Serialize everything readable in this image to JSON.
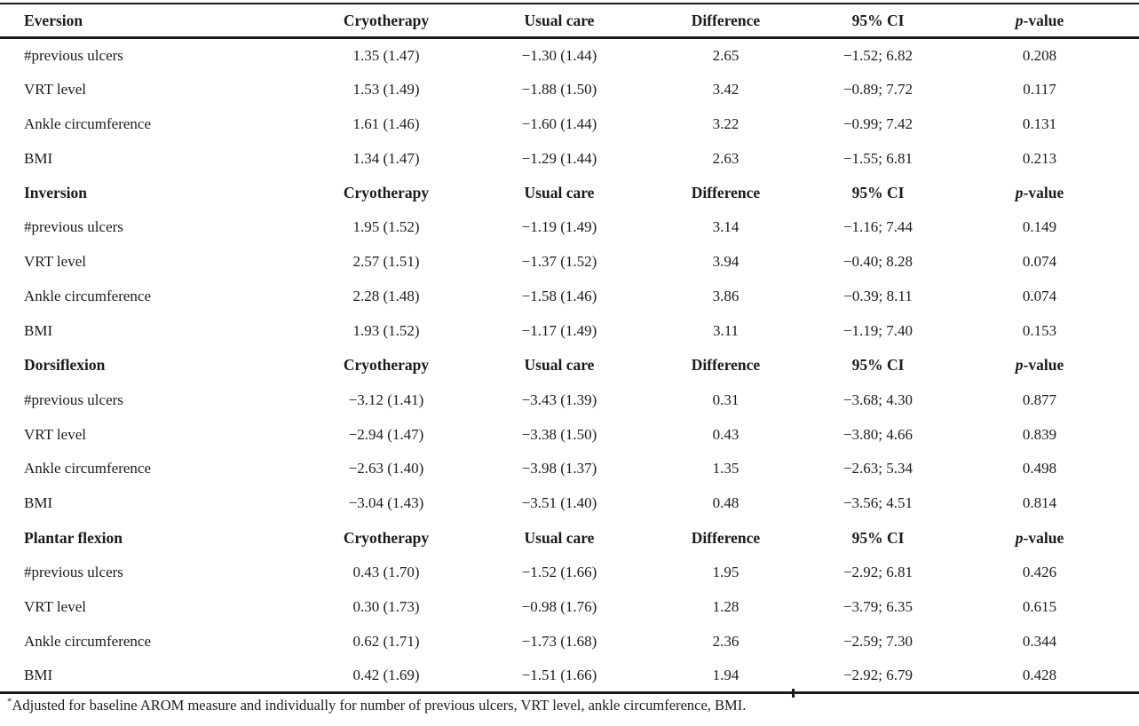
{
  "page": {
    "background": "#ffffff",
    "text_color": "#1b1b1b"
  },
  "table": {
    "column_headers": [
      "Cryotherapy",
      "Usual care",
      "Difference",
      "95% CI"
    ],
    "pvalue_header": {
      "italic": "p",
      "rest": "-value"
    },
    "sections": [
      {
        "title": "Eversion",
        "rows": [
          {
            "label": "#previous ulcers",
            "values": [
              "1.35 (1.47)",
              "−1.30 (1.44)",
              "2.65",
              "−1.52; 6.82",
              "0.208"
            ]
          },
          {
            "label": "VRT level",
            "values": [
              "1.53 (1.49)",
              "−1.88 (1.50)",
              "3.42",
              "−0.89; 7.72",
              "0.117"
            ]
          },
          {
            "label": "Ankle circumference",
            "values": [
              "1.61 (1.46)",
              "−1.60 (1.44)",
              "3.22",
              "−0.99; 7.42",
              "0.131"
            ]
          },
          {
            "label": "BMI",
            "values": [
              "1.34 (1.47)",
              "−1.29 (1.44)",
              "2.63",
              "−1.55; 6.81",
              "0.213"
            ]
          }
        ]
      },
      {
        "title": "Inversion",
        "rows": [
          {
            "label": "#previous ulcers",
            "values": [
              "1.95 (1.52)",
              "−1.19 (1.49)",
              "3.14",
              "−1.16; 7.44",
              "0.149"
            ]
          },
          {
            "label": "VRT level",
            "values": [
              "2.57 (1.51)",
              "−1.37 (1.52)",
              "3.94",
              "−0.40; 8.28",
              "0.074"
            ]
          },
          {
            "label": "Ankle circumference",
            "values": [
              "2.28 (1.48)",
              "−1.58 (1.46)",
              "3.86",
              "−0.39; 8.11",
              "0.074"
            ]
          },
          {
            "label": "BMI",
            "values": [
              "1.93 (1.52)",
              "−1.17 (1.49)",
              "3.11",
              "−1.19; 7.40",
              "0.153"
            ]
          }
        ]
      },
      {
        "title": "Dorsiflexion",
        "rows": [
          {
            "label": "#previous ulcers",
            "values": [
              "−3.12 (1.41)",
              "−3.43 (1.39)",
              "0.31",
              "−3.68; 4.30",
              "0.877"
            ]
          },
          {
            "label": "VRT level",
            "values": [
              "−2.94 (1.47)",
              "−3.38 (1.50)",
              "0.43",
              "−3.80; 4.66",
              "0.839"
            ]
          },
          {
            "label": "Ankle circumference",
            "values": [
              "−2.63 (1.40)",
              "−3.98 (1.37)",
              "1.35",
              "−2.63; 5.34",
              "0.498"
            ]
          },
          {
            "label": "BMI",
            "values": [
              "−3.04 (1.43)",
              "−3.51 (1.40)",
              "0.48",
              "−3.56; 4.51",
              "0.814"
            ]
          }
        ]
      },
      {
        "title": "Plantar flexion",
        "rows": [
          {
            "label": "#previous ulcers",
            "values": [
              "0.43 (1.70)",
              "−1.52 (1.66)",
              "1.95",
              "−2.92; 6.81",
              "0.426"
            ]
          },
          {
            "label": "VRT level",
            "values": [
              "0.30 (1.73)",
              "−0.98 (1.76)",
              "1.28",
              "−3.79; 6.35",
              "0.615"
            ]
          },
          {
            "label": "Ankle circumference",
            "values": [
              "0.62 (1.71)",
              "−1.73 (1.68)",
              "2.36",
              "−2.59; 7.30",
              "0.344"
            ]
          },
          {
            "label": "BMI",
            "values": [
              "0.42 (1.69)",
              "−1.51 (1.66)",
              "1.94",
              "−2.92; 6.79",
              "0.428"
            ]
          }
        ]
      }
    ],
    "footnote": {
      "marker": "*",
      "text": "Adjusted for baseline AROM measure and individually for number of previous ulcers, VRT level, ankle circumference, BMI."
    }
  }
}
